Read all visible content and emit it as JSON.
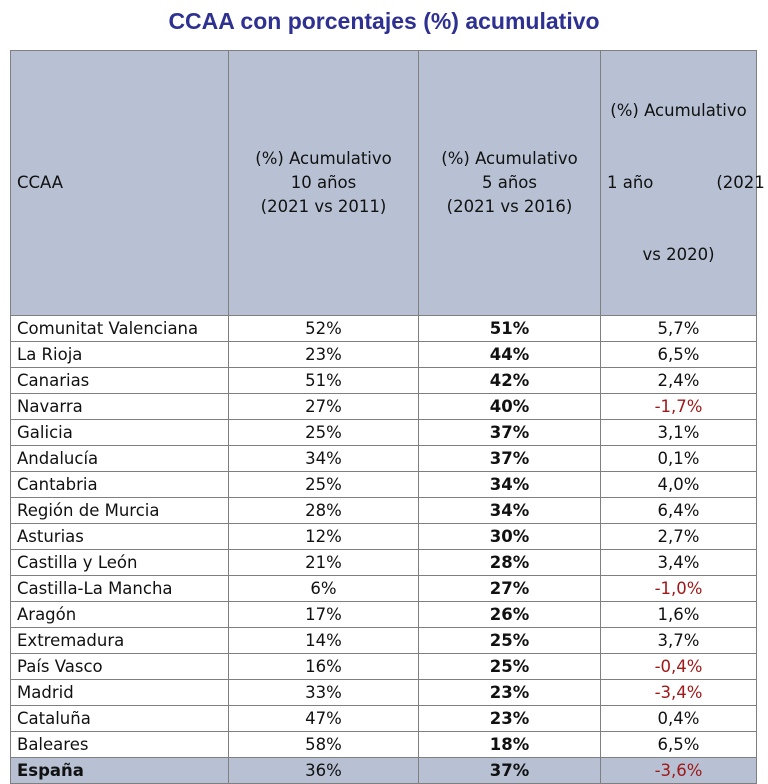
{
  "title": "CCAA con porcentajes (%) acumulativo",
  "headers": {
    "ccaa": "CCAA",
    "col10": [
      "(%) Acumulativo",
      "10 años",
      "(2021 vs 2011)"
    ],
    "col5": [
      "(%) Acumulativo",
      "5 años",
      "(2021 vs 2016)"
    ],
    "col1": [
      "(%) Acumulativo",
      "1 año            (2021",
      "vs 2020)"
    ]
  },
  "rows": [
    {
      "name": "Comunitat Valenciana",
      "y10": "52%",
      "y5": "51%",
      "y1": "5,7%"
    },
    {
      "name": "La Rioja",
      "y10": "23%",
      "y5": "44%",
      "y1": "6,5%"
    },
    {
      "name": "Canarias",
      "y10": "51%",
      "y5": "42%",
      "y1": "2,4%"
    },
    {
      "name": "Navarra",
      "y10": "27%",
      "y5": "40%",
      "y1": "-1,7%"
    },
    {
      "name": "Galicia",
      "y10": "25%",
      "y5": "37%",
      "y1": "3,1%"
    },
    {
      "name": "Andalucía",
      "y10": "34%",
      "y5": "37%",
      "y1": "0,1%"
    },
    {
      "name": "Cantabria",
      "y10": "25%",
      "y5": "34%",
      "y1": "4,0%"
    },
    {
      "name": "Región de Murcia",
      "y10": "28%",
      "y5": "34%",
      "y1": "6,4%"
    },
    {
      "name": "Asturias",
      "y10": "12%",
      "y5": "30%",
      "y1": "2,7%"
    },
    {
      "name": "Castilla y León",
      "y10": "21%",
      "y5": "28%",
      "y1": "3,4%"
    },
    {
      "name": "Castilla-La Mancha",
      "y10": "6%",
      "y5": "27%",
      "y1": "-1,0%"
    },
    {
      "name": "Aragón",
      "y10": "17%",
      "y5": "26%",
      "y1": "1,6%"
    },
    {
      "name": "Extremadura",
      "y10": "14%",
      "y5": "25%",
      "y1": "3,7%"
    },
    {
      "name": "País Vasco",
      "y10": "16%",
      "y5": "25%",
      "y1": "-0,4%"
    },
    {
      "name": "Madrid",
      "y10": "33%",
      "y5": "23%",
      "y1": "-3,4%"
    },
    {
      "name": "Cataluña",
      "y10": "47%",
      "y5": "23%",
      "y1": "0,4%"
    },
    {
      "name": "Baleares",
      "y10": "58%",
      "y5": "18%",
      "y1": "6,5%"
    }
  ],
  "total": {
    "name": "España",
    "y10": "36%",
    "y5": "37%",
    "y1": "-3,6%"
  },
  "colors": {
    "title": "#2e3192",
    "header_bg": "#b7c1d3",
    "negative": "#a01818"
  }
}
